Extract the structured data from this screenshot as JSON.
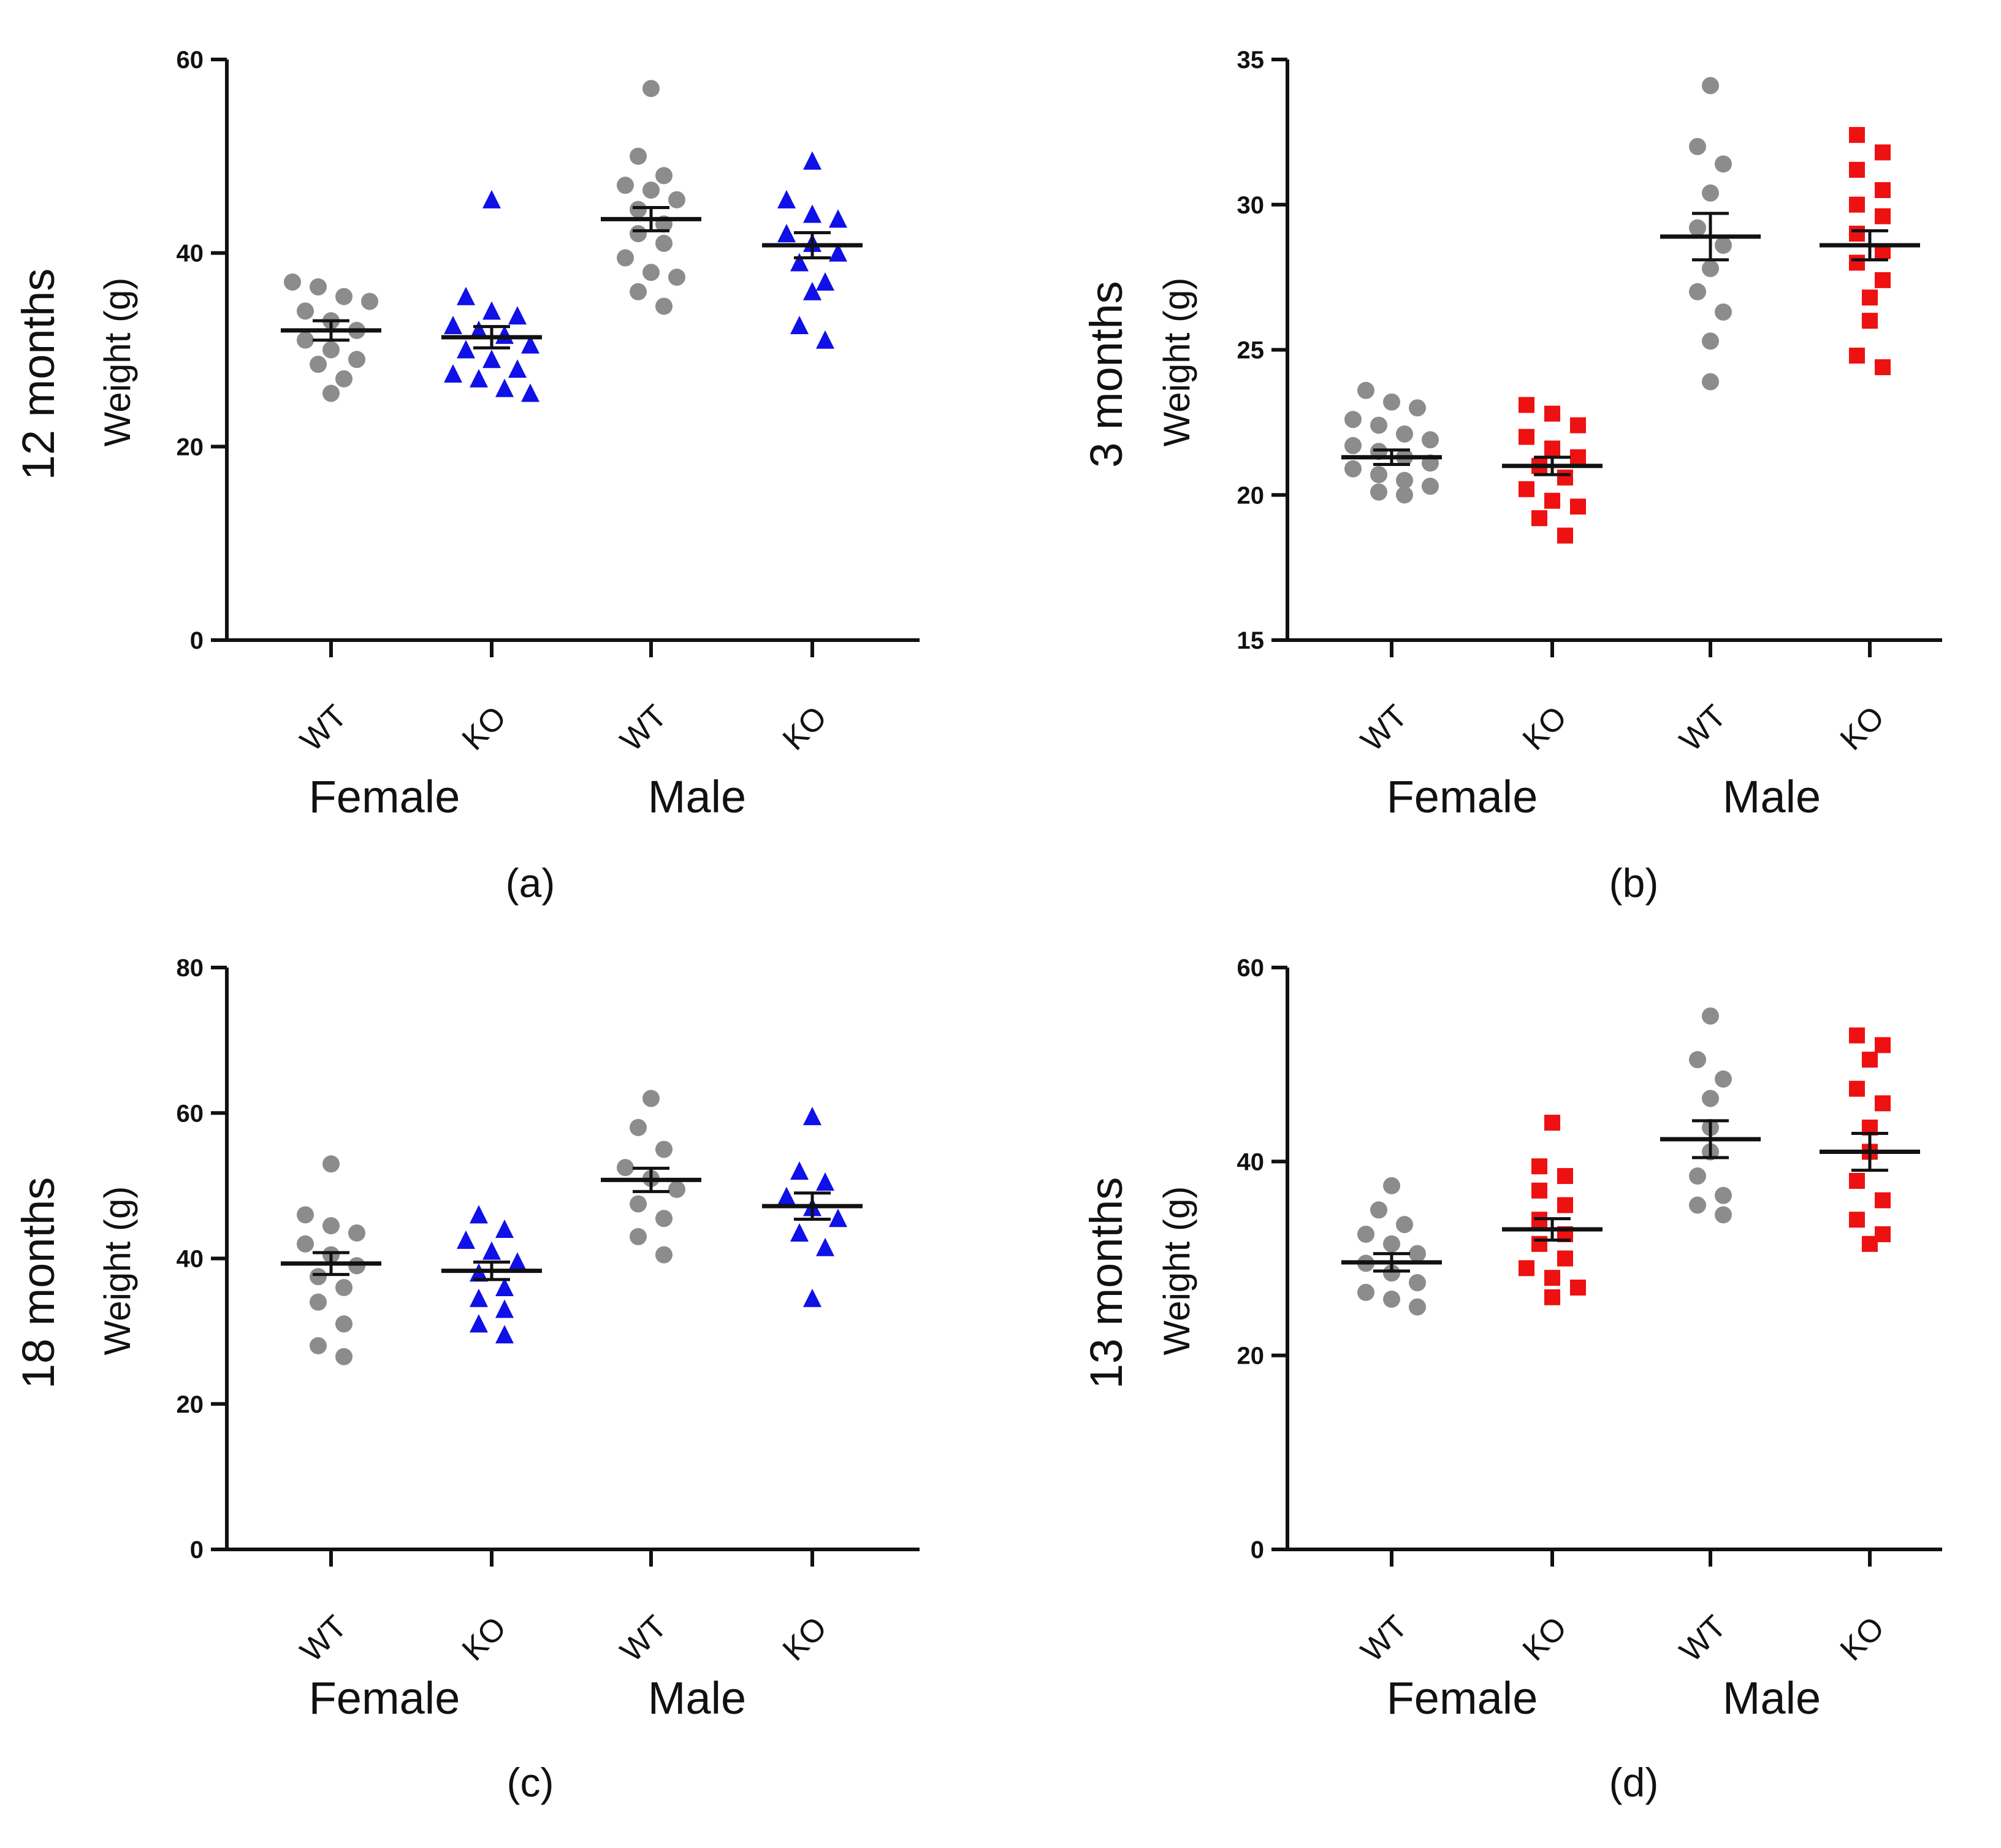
{
  "chart_data": [
    {
      "type": "scatter",
      "panel_label": "(a)",
      "age_label": "12 months",
      "ylabel": "Weight (g)",
      "ylim": [
        0,
        60
      ],
      "yticks": [
        0,
        20,
        40,
        60
      ],
      "tick_labels": [
        "0",
        "20",
        "40",
        "60"
      ],
      "categories": [
        "WT",
        "KO",
        "WT",
        "KO"
      ],
      "groups": [
        {
          "name": "Female",
          "categories": [
            0,
            1
          ]
        },
        {
          "name": "Male",
          "categories": [
            2,
            3
          ]
        }
      ],
      "series": [
        {
          "name": "Female WT",
          "color": "#8c8c8c",
          "marker": "circle",
          "mean": 32.0,
          "sem": 1.0,
          "values": [
            25.5,
            27.0,
            28.5,
            29.0,
            30.0,
            31.0,
            32.0,
            33.0,
            34.0,
            35.0,
            35.5,
            36.5,
            37.0
          ]
        },
        {
          "name": "Female KO",
          "color": "#1010e8",
          "marker": "triangle",
          "mean": 31.3,
          "sem": 1.1,
          "values": [
            25.5,
            26.0,
            27.0,
            27.5,
            28.0,
            29.0,
            30.0,
            30.5,
            31.5,
            32.0,
            32.5,
            33.5,
            34.0,
            35.5,
            45.5
          ]
        },
        {
          "name": "Male WT",
          "color": "#8c8c8c",
          "marker": "circle",
          "mean": 43.5,
          "sem": 1.2,
          "values": [
            34.5,
            36.0,
            37.5,
            38.0,
            39.5,
            41.0,
            42.0,
            43.0,
            44.5,
            45.5,
            46.5,
            47.0,
            48.0,
            50.0,
            57.0
          ]
        },
        {
          "name": "Male KO",
          "color": "#1010e8",
          "marker": "triangle",
          "mean": 40.8,
          "sem": 1.3,
          "values": [
            31.0,
            32.5,
            36.0,
            37.0,
            39.0,
            40.0,
            41.0,
            42.0,
            43.5,
            44.0,
            45.5,
            49.5
          ]
        }
      ]
    },
    {
      "type": "scatter",
      "panel_label": "(b)",
      "age_label": "3 months",
      "ylabel": "Weight (g)",
      "ylim": [
        15,
        35
      ],
      "yticks": [
        15,
        20,
        25,
        30,
        35
      ],
      "tick_labels": [
        "15",
        "20",
        "25",
        "30",
        "35"
      ],
      "categories": [
        "WT",
        "KO",
        "WT",
        "KO"
      ],
      "groups": [
        {
          "name": "Female",
          "categories": [
            0,
            1
          ]
        },
        {
          "name": "Male",
          "categories": [
            2,
            3
          ]
        }
      ],
      "series": [
        {
          "name": "Female WT",
          "color": "#8c8c8c",
          "marker": "circle",
          "mean": 21.3,
          "sem": 0.25,
          "values": [
            20.0,
            20.1,
            20.3,
            20.5,
            20.7,
            20.9,
            21.1,
            21.3,
            21.5,
            21.7,
            21.9,
            22.1,
            22.4,
            22.6,
            23.0,
            23.2,
            23.6
          ]
        },
        {
          "name": "Female KO",
          "color": "#ee1111",
          "marker": "square",
          "mean": 21.0,
          "sem": 0.3,
          "values": [
            18.6,
            19.2,
            19.6,
            19.8,
            20.2,
            20.6,
            21.0,
            21.3,
            21.6,
            22.0,
            22.4,
            22.8,
            23.1
          ]
        },
        {
          "name": "Male WT",
          "color": "#8c8c8c",
          "marker": "circle",
          "mean": 28.9,
          "sem": 0.8,
          "values": [
            23.9,
            25.3,
            26.3,
            27.0,
            27.8,
            28.6,
            29.2,
            30.4,
            31.4,
            32.0,
            34.1
          ]
        },
        {
          "name": "Male KO",
          "color": "#ee1111",
          "marker": "square",
          "mean": 28.6,
          "sem": 0.5,
          "values": [
            24.4,
            24.8,
            26.0,
            26.8,
            27.4,
            28.0,
            28.4,
            29.0,
            29.6,
            30.0,
            30.5,
            31.2,
            31.8,
            32.4
          ]
        }
      ]
    },
    {
      "type": "scatter",
      "panel_label": "(c)",
      "age_label": "18 months",
      "ylabel": "Weight (g)",
      "ylim": [
        0,
        80
      ],
      "yticks": [
        0,
        20,
        40,
        60,
        80
      ],
      "tick_labels": [
        "0",
        "20",
        "40",
        "60",
        "80"
      ],
      "categories": [
        "WT",
        "KO",
        "WT",
        "KO"
      ],
      "groups": [
        {
          "name": "Female",
          "categories": [
            0,
            1
          ]
        },
        {
          "name": "Male",
          "categories": [
            2,
            3
          ]
        }
      ],
      "series": [
        {
          "name": "Female WT",
          "color": "#8c8c8c",
          "marker": "circle",
          "mean": 39.3,
          "sem": 1.5,
          "values": [
            26.5,
            28.0,
            31.0,
            34.0,
            36.0,
            37.5,
            39.0,
            40.5,
            42.0,
            43.5,
            44.5,
            46.0,
            53.0
          ]
        },
        {
          "name": "Female KO",
          "color": "#1010e8",
          "marker": "triangle",
          "mean": 38.3,
          "sem": 1.2,
          "values": [
            29.5,
            31.0,
            33.0,
            34.5,
            36.0,
            38.0,
            39.5,
            41.0,
            42.5,
            44.0,
            46.0
          ]
        },
        {
          "name": "Male WT",
          "color": "#8c8c8c",
          "marker": "circle",
          "mean": 50.8,
          "sem": 1.6,
          "values": [
            40.5,
            43.0,
            45.5,
            47.5,
            49.5,
            51.0,
            52.5,
            55.0,
            58.0,
            62.0
          ]
        },
        {
          "name": "Male KO",
          "color": "#1010e8",
          "marker": "triangle",
          "mean": 47.2,
          "sem": 1.8,
          "values": [
            34.5,
            41.5,
            43.5,
            45.5,
            47.0,
            48.5,
            50.5,
            52.0,
            59.5
          ]
        }
      ]
    },
    {
      "type": "scatter",
      "panel_label": "(d)",
      "age_label": "13 months",
      "ylabel": "Weight (g)",
      "ylim": [
        0,
        60
      ],
      "yticks": [
        0,
        20,
        40,
        60
      ],
      "tick_labels": [
        "0",
        "20",
        "40",
        "60"
      ],
      "categories": [
        "WT",
        "KO",
        "WT",
        "KO"
      ],
      "groups": [
        {
          "name": "Female",
          "categories": [
            0,
            1
          ]
        },
        {
          "name": "Male",
          "categories": [
            2,
            3
          ]
        }
      ],
      "series": [
        {
          "name": "Female WT",
          "color": "#8c8c8c",
          "marker": "circle",
          "mean": 29.6,
          "sem": 0.9,
          "values": [
            25.0,
            25.8,
            26.5,
            27.5,
            28.5,
            29.5,
            30.5,
            31.5,
            32.5,
            33.5,
            35.0,
            37.5
          ]
        },
        {
          "name": "Female KO",
          "color": "#ee1111",
          "marker": "square",
          "mean": 33.0,
          "sem": 1.1,
          "values": [
            26.0,
            27.0,
            28.0,
            29.0,
            30.0,
            31.5,
            32.5,
            34.0,
            35.5,
            37.0,
            38.5,
            39.5,
            44.0
          ]
        },
        {
          "name": "Male WT",
          "color": "#8c8c8c",
          "marker": "circle",
          "mean": 42.3,
          "sem": 1.9,
          "values": [
            34.5,
            35.5,
            36.5,
            38.5,
            41.0,
            43.5,
            46.5,
            48.5,
            50.5,
            55.0
          ]
        },
        {
          "name": "Male KO",
          "color": "#ee1111",
          "marker": "square",
          "mean": 41.0,
          "sem": 1.9,
          "values": [
            31.5,
            32.5,
            34.0,
            36.0,
            38.0,
            41.0,
            43.5,
            46.0,
            47.5,
            50.5,
            52.0,
            53.0
          ]
        }
      ]
    }
  ]
}
